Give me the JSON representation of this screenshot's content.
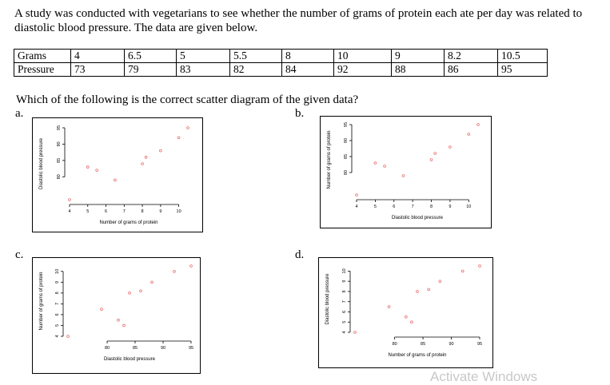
{
  "question": {
    "text": "A study was conducted with vegetarians to see whether the number of grams of protein each ate per day was related to diastolic blood pressure. The data are given below."
  },
  "table": {
    "rows": [
      {
        "label": "Grams",
        "values": [
          "4",
          "6.5",
          "5",
          "5.5",
          "8",
          "10",
          "9",
          "8.2",
          "10.5"
        ]
      },
      {
        "label": "Pressure",
        "values": [
          "73",
          "79",
          "83",
          "82",
          "84",
          "92",
          "88",
          "86",
          "95"
        ]
      }
    ]
  },
  "prompt": "Which of the following is the correct scatter diagram of the given data?",
  "options": [
    {
      "letter": "a."
    },
    {
      "letter": "b."
    },
    {
      "letter": "c."
    },
    {
      "letter": "d."
    }
  ],
  "chart_data": [
    {
      "type": "scatter",
      "option": "a",
      "xlabel": "Number of grams of protein",
      "ylabel": "Diastolic blood pressure",
      "xlim": [
        4,
        10.5
      ],
      "ylim": [
        73,
        95
      ],
      "xticks": [
        "4",
        "5",
        "6",
        "7",
        "8",
        "9",
        "10"
      ],
      "yticks": [
        "80",
        "85",
        "90",
        "95"
      ],
      "points": [
        [
          4,
          73
        ],
        [
          5,
          83
        ],
        [
          5.5,
          82
        ],
        [
          6.5,
          79
        ],
        [
          8,
          84
        ],
        [
          8.2,
          86
        ],
        [
          9,
          88
        ],
        [
          10,
          92
        ],
        [
          10.5,
          95
        ]
      ],
      "marker_color": "#e8706f"
    },
    {
      "type": "scatter",
      "option": "b",
      "xlabel": "Diastolic blood pressure",
      "ylabel": "Number of grams of protein",
      "xlim": [
        4,
        10.5
      ],
      "ylim": [
        73,
        95
      ],
      "xticks": [
        "4",
        "5",
        "6",
        "7",
        "8",
        "9",
        "10"
      ],
      "yticks": [
        "80",
        "85",
        "90",
        "95"
      ],
      "points": [
        [
          4,
          73
        ],
        [
          5,
          83
        ],
        [
          5.5,
          82
        ],
        [
          6.5,
          79
        ],
        [
          8,
          84
        ],
        [
          8.2,
          86
        ],
        [
          9,
          88
        ],
        [
          10,
          92
        ],
        [
          10.5,
          95
        ]
      ],
      "marker_color": "#e8706f"
    },
    {
      "type": "scatter",
      "option": "c",
      "xlabel": "Diastolic blood pressure",
      "ylabel": "Number of grams of protein",
      "xlim": [
        73,
        95
      ],
      "ylim": [
        4,
        10.5
      ],
      "xticks": [
        "80",
        "85",
        "90",
        "95"
      ],
      "yticks": [
        "4",
        "5",
        "6",
        "7",
        "8",
        "9",
        "10"
      ],
      "points": [
        [
          73,
          4
        ],
        [
          79,
          6.5
        ],
        [
          82,
          5.5
        ],
        [
          83,
          5
        ],
        [
          84,
          8
        ],
        [
          86,
          8.2
        ],
        [
          88,
          9
        ],
        [
          92,
          10
        ],
        [
          95,
          10.5
        ]
      ],
      "marker_color": "#e8706f"
    },
    {
      "type": "scatter",
      "option": "d",
      "xlabel": "Number of grams of protein",
      "ylabel": "Diastolic blood pressure",
      "xlim": [
        73,
        95
      ],
      "ylim": [
        4,
        10.5
      ],
      "xticks": [
        "80",
        "85",
        "90",
        "95"
      ],
      "yticks": [
        "4",
        "5",
        "6",
        "7",
        "8",
        "9",
        "10"
      ],
      "points": [
        [
          73,
          4
        ],
        [
          79,
          6.5
        ],
        [
          82,
          5.5
        ],
        [
          83,
          5
        ],
        [
          84,
          8
        ],
        [
          86,
          8.2
        ],
        [
          88,
          9
        ],
        [
          92,
          10
        ],
        [
          95,
          10.5
        ]
      ],
      "marker_color": "#e8706f"
    }
  ],
  "watermark": "Activate Windows"
}
